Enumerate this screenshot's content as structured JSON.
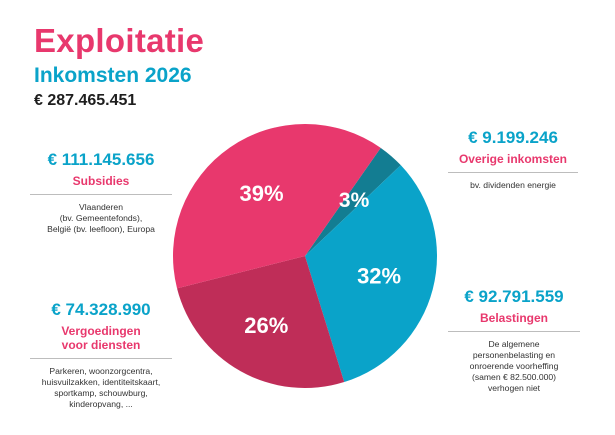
{
  "header": {
    "title": "Exploitatie",
    "subtitle": "Inkomsten 2026",
    "total": "€ 287.465.451"
  },
  "blocks": {
    "subsidies": {
      "amount": "€ 111.145.656",
      "label": "Subsidies",
      "desc_lines": [
        "Vlaanderen",
        "(bv. Gemeentefonds),",
        "België (bv. leefloon), Europa"
      ]
    },
    "vergoedingen": {
      "amount": "€ 74.328.990",
      "label_lines": [
        "Vergoedingen",
        "voor diensten"
      ],
      "desc_lines": [
        "Parkeren, woonzorgcentra,",
        "huisvuilzakken, identiteitskaart,",
        "sportkamp, schouwburg,",
        "kinderopvang, ..."
      ]
    },
    "overige": {
      "amount": "€ 9.199.246",
      "label": "Overige inkomsten",
      "desc_lines": [
        "bv. dividenden energie"
      ]
    },
    "belastingen": {
      "amount": "€ 92.791.559",
      "label": "Belastingen",
      "desc_lines": [
        "De algemene",
        "personenbelasting en",
        "onroerende voorheffing",
        "(samen € 82.500.000)",
        "verhogen niet"
      ]
    }
  },
  "chart_data": {
    "type": "pie",
    "slices": [
      {
        "key": "overige",
        "percent_label": "3%",
        "value": 9199246,
        "color": "#137d92"
      },
      {
        "key": "belastingen",
        "percent_label": "32%",
        "value": 92791559,
        "color": "#0aa3c9"
      },
      {
        "key": "vergoedingen",
        "percent_label": "26%",
        "value": 74328990,
        "color": "#bf2d58"
      },
      {
        "key": "subsidies",
        "percent_label": "39%",
        "value": 111145656,
        "color": "#e8386d"
      }
    ]
  }
}
